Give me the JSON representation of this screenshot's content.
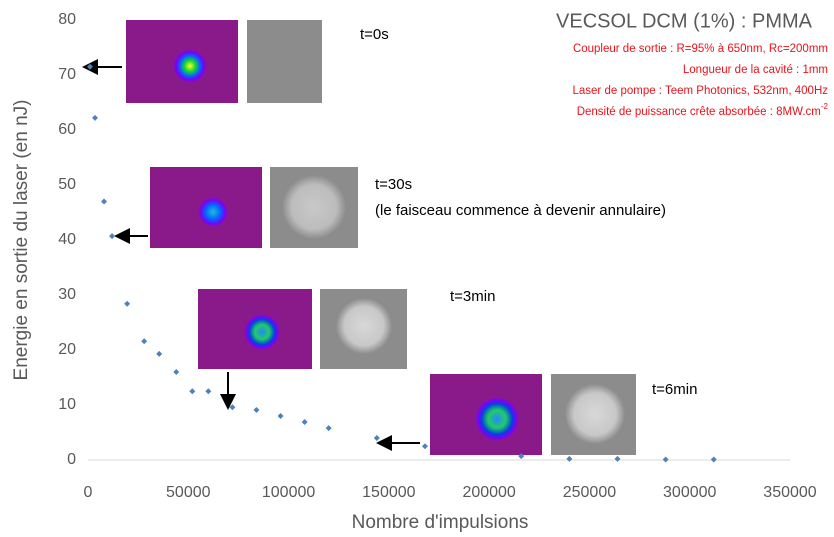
{
  "chart_data": {
    "type": "scatter",
    "title": "VECSOL DCM (1%) : PMMA",
    "subtitle_lines": [
      "Coupleur de sortie : R=95% à 650nm, Rc=200mm",
      "Longueur de la cavité : 1mm",
      "Laser de pompe : Teem Photonics, 532nm, 400Hz"
    ],
    "density_label": {
      "text": "Densité de puissance crête absorbée : 8MW.cm",
      "superscript": "-2"
    },
    "annotations": [
      "t=0s",
      "t=30s",
      "(le faisceau commence à devenir annulaire)",
      "t=3min",
      "t=6min"
    ],
    "x_label": "Nombre d'impulsions",
    "y_label": "Energie en sortie du laser (en nJ)",
    "color": "#4f81bd",
    "x": [
      1000,
      3500,
      8000,
      12000,
      19500,
      28000,
      35500,
      44000,
      52000,
      60000,
      72000,
      84000,
      96000,
      108000,
      120000,
      144000,
      168000,
      216000,
      240000,
      264000,
      288000,
      312000
    ],
    "values": [
      71.5,
      62.2,
      47,
      40.7,
      28.4,
      21.6,
      19.3,
      16,
      12.5,
      12.5,
      9.6,
      9.1,
      8,
      6.9,
      5.8,
      4,
      2.5,
      0.7,
      0.2,
      0.2,
      0.1,
      0.1
    ],
    "xlim": [
      0,
      350000
    ],
    "xticks": [
      0,
      50000,
      100000,
      150000,
      200000,
      250000,
      300000,
      350000
    ],
    "ylim": [
      0,
      80
    ],
    "yticks": [
      0,
      10,
      20,
      30,
      40,
      50,
      60,
      70,
      80
    ]
  }
}
